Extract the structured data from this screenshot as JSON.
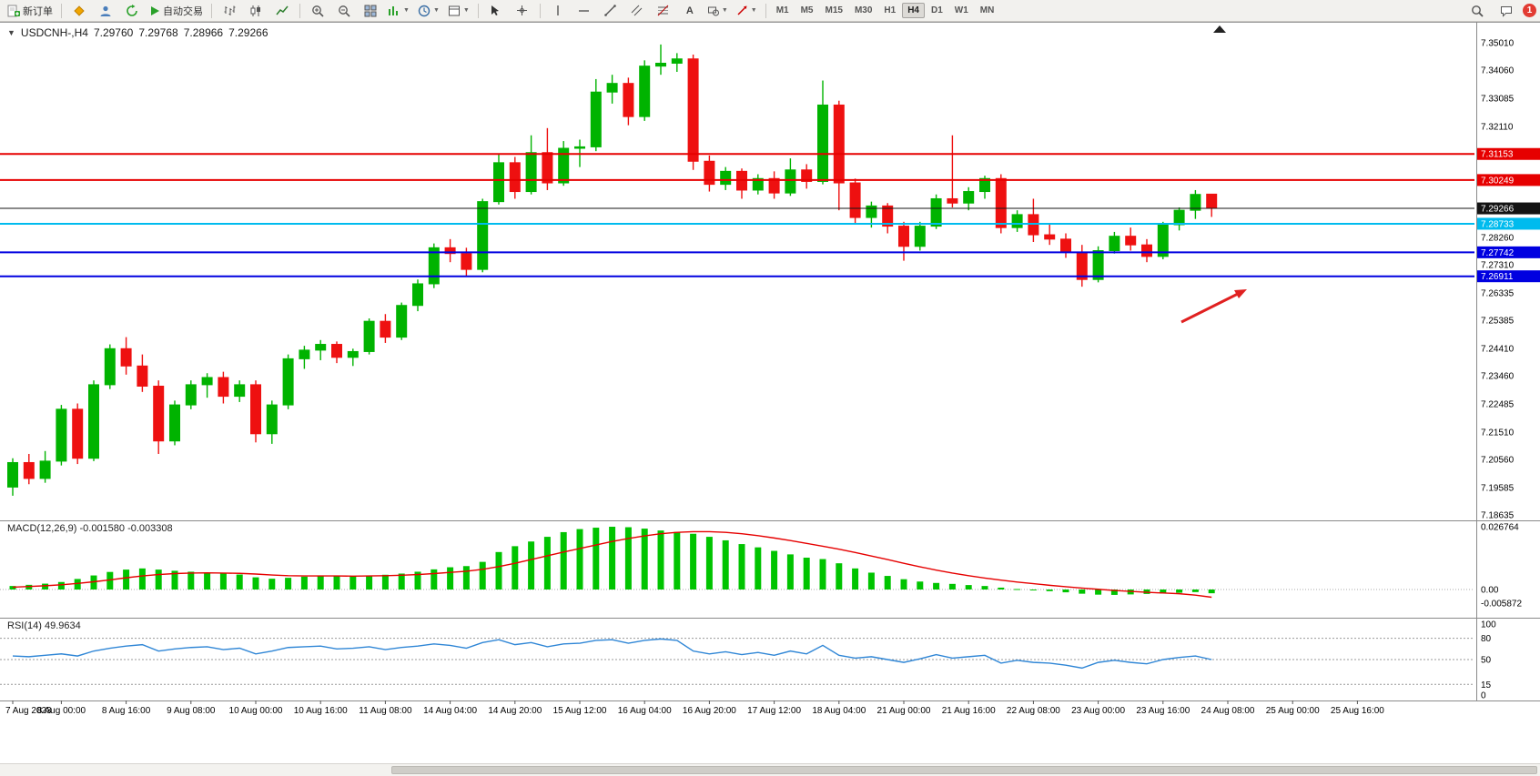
{
  "toolbar": {
    "new_order_label": "新订单",
    "autotrade_label": "自动交易",
    "timeframes": [
      "M1",
      "M5",
      "M15",
      "M30",
      "H1",
      "H4",
      "D1",
      "W1",
      "MN"
    ],
    "active_timeframe": "H4",
    "notification_count": "1"
  },
  "chart": {
    "symbol_title": "USDCNH-,H4",
    "open": "7.29760",
    "high": "7.29768",
    "low": "7.28966",
    "close": "7.29266"
  },
  "chart_data": {
    "type": "candlestick",
    "symbol": "USDCNH-",
    "timeframe": "H4",
    "current_ohlc": {
      "open": 7.2976,
      "high": 7.29768,
      "low": 7.28966,
      "close": 7.29266
    },
    "price_axis_ticks": [
      "7.35010",
      "7.34060",
      "7.33085",
      "7.32110",
      "7.28260",
      "7.27310",
      "7.26335",
      "7.25385",
      "7.24410",
      "7.23460",
      "7.22485",
      "7.21510",
      "7.20560",
      "7.19585",
      "7.18635"
    ],
    "hlines": [
      {
        "price": 7.31153,
        "label": "7.31153",
        "color": "#e60000",
        "width": 2
      },
      {
        "price": 7.30249,
        "label": "7.30249",
        "color": "#e60000",
        "width": 2
      },
      {
        "price": 7.28733,
        "label": "7.28733",
        "color": "#00bbee",
        "width": 2
      },
      {
        "price": 7.27742,
        "label": "7.27742",
        "color": "#0000e0",
        "width": 2
      },
      {
        "price": 7.26911,
        "label": "7.26911",
        "color": "#0000e0",
        "width": 2
      }
    ],
    "current_price": {
      "value": 7.29266,
      "label": "7.29266",
      "color": "#151515"
    },
    "candles": [
      [
        7.196,
        7.206,
        7.193,
        7.2045
      ],
      [
        7.2045,
        7.2075,
        7.197,
        7.199
      ],
      [
        7.199,
        7.2085,
        7.1975,
        7.205
      ],
      [
        7.205,
        7.2245,
        7.2035,
        7.223
      ],
      [
        7.223,
        7.225,
        7.204,
        7.206
      ],
      [
        7.206,
        7.233,
        7.205,
        7.2315
      ],
      [
        7.2315,
        7.2455,
        7.23,
        7.244
      ],
      [
        7.244,
        7.248,
        7.235,
        7.238
      ],
      [
        7.238,
        7.242,
        7.229,
        7.231
      ],
      [
        7.231,
        7.233,
        7.2075,
        7.212
      ],
      [
        7.212,
        7.226,
        7.2105,
        7.2245
      ],
      [
        7.2245,
        7.233,
        7.223,
        7.2315
      ],
      [
        7.2315,
        7.2355,
        7.227,
        7.234
      ],
      [
        7.234,
        7.236,
        7.225,
        7.2275
      ],
      [
        7.2275,
        7.233,
        7.2255,
        7.2315
      ],
      [
        7.2315,
        7.233,
        7.2115,
        7.2145
      ],
      [
        7.2145,
        7.226,
        7.211,
        7.2245
      ],
      [
        7.2245,
        7.242,
        7.223,
        7.2405
      ],
      [
        7.2405,
        7.245,
        7.237,
        7.2435
      ],
      [
        7.2435,
        7.247,
        7.24,
        7.2455
      ],
      [
        7.2455,
        7.2465,
        7.239,
        7.241
      ],
      [
        7.241,
        7.244,
        7.238,
        7.243
      ],
      [
        7.243,
        7.2545,
        7.242,
        7.2535
      ],
      [
        7.2535,
        7.256,
        7.246,
        7.248
      ],
      [
        7.248,
        7.26,
        7.247,
        7.259
      ],
      [
        7.259,
        7.268,
        7.257,
        7.2665
      ],
      [
        7.2665,
        7.2805,
        7.265,
        7.279
      ],
      [
        7.279,
        7.282,
        7.274,
        7.277
      ],
      [
        7.277,
        7.279,
        7.269,
        7.2715
      ],
      [
        7.2715,
        7.296,
        7.2705,
        7.295
      ],
      [
        7.295,
        7.3115,
        7.294,
        7.3085
      ],
      [
        7.3085,
        7.3105,
        7.296,
        7.2985
      ],
      [
        7.2985,
        7.318,
        7.2975,
        7.312
      ],
      [
        7.312,
        7.3205,
        7.299,
        7.3015
      ],
      [
        7.3015,
        7.316,
        7.3005,
        7.3135
      ],
      [
        7.3135,
        7.3165,
        7.307,
        7.314
      ],
      [
        7.314,
        7.3375,
        7.3125,
        7.333
      ],
      [
        7.333,
        7.339,
        7.329,
        7.336
      ],
      [
        7.336,
        7.338,
        7.3215,
        7.3245
      ],
      [
        7.3245,
        7.344,
        7.323,
        7.342
      ],
      [
        7.342,
        7.3495,
        7.339,
        7.343
      ],
      [
        7.343,
        7.3465,
        7.34,
        7.3445
      ],
      [
        7.3445,
        7.346,
        7.306,
        7.309
      ],
      [
        7.309,
        7.311,
        7.2985,
        7.301
      ],
      [
        7.301,
        7.307,
        7.299,
        7.3055
      ],
      [
        7.3055,
        7.3065,
        7.296,
        7.299
      ],
      [
        7.299,
        7.3045,
        7.2975,
        7.303
      ],
      [
        7.303,
        7.3055,
        7.296,
        7.298
      ],
      [
        7.298,
        7.31,
        7.297,
        7.306
      ],
      [
        7.306,
        7.308,
        7.2995,
        7.302
      ],
      [
        7.302,
        7.337,
        7.301,
        7.3285
      ],
      [
        7.3285,
        7.33,
        7.292,
        7.3015
      ],
      [
        7.3015,
        7.303,
        7.287,
        7.2895
      ],
      [
        7.2895,
        7.295,
        7.286,
        7.2935
      ],
      [
        7.2935,
        7.2945,
        7.284,
        7.2865
      ],
      [
        7.2865,
        7.288,
        7.2745,
        7.2795
      ],
      [
        7.2795,
        7.288,
        7.278,
        7.2865
      ],
      [
        7.2865,
        7.2975,
        7.2855,
        7.296
      ],
      [
        7.296,
        7.318,
        7.293,
        7.2945
      ],
      [
        7.2945,
        7.3,
        7.292,
        7.2985
      ],
      [
        7.2985,
        7.304,
        7.296,
        7.303
      ],
      [
        7.303,
        7.3045,
        7.284,
        7.286
      ],
      [
        7.286,
        7.292,
        7.2845,
        7.2905
      ],
      [
        7.2905,
        7.296,
        7.281,
        7.2835
      ],
      [
        7.2835,
        7.287,
        7.28,
        7.282
      ],
      [
        7.282,
        7.284,
        7.2755,
        7.2775
      ],
      [
        7.2775,
        7.28,
        7.2655,
        7.268
      ],
      [
        7.268,
        7.2795,
        7.267,
        7.278
      ],
      [
        7.278,
        7.2845,
        7.277,
        7.283
      ],
      [
        7.283,
        7.286,
        7.278,
        7.28
      ],
      [
        7.28,
        7.282,
        7.274,
        7.276
      ],
      [
        7.276,
        7.288,
        7.275,
        7.287
      ],
      [
        7.287,
        7.293,
        7.285,
        7.292
      ],
      [
        7.292,
        7.299,
        7.289,
        7.2975
      ],
      [
        7.2976,
        7.2977,
        7.2897,
        7.2927
      ]
    ],
    "x_labels": [
      "7 Aug 2023",
      "8 Aug 00:00",
      "8 Aug 16:00",
      "9 Aug 08:00",
      "10 Aug 00:00",
      "10 Aug 16:00",
      "11 Aug 08:00",
      "14 Aug 04:00",
      "14 Aug 20:00",
      "15 Aug 12:00",
      "16 Aug 04:00",
      "16 Aug 20:00",
      "17 Aug 12:00",
      "18 Aug 04:00",
      "21 Aug 00:00",
      "21 Aug 16:00",
      "22 Aug 08:00",
      "23 Aug 00:00",
      "23 Aug 16:00",
      "24 Aug 08:00",
      "25 Aug 00:00",
      "25 Aug 16:00"
    ],
    "macd": {
      "label": "MACD(12,26,9)",
      "value_main": "-0.001580",
      "value_signal": "-0.003308",
      "axis_labels": [
        "0.026764",
        "0.00",
        "-0.005872"
      ],
      "histogram": [
        0.0015,
        0.002,
        0.0025,
        0.0032,
        0.0045,
        0.006,
        0.0075,
        0.0085,
        0.009,
        0.0085,
        0.008,
        0.0076,
        0.0072,
        0.0068,
        0.0064,
        0.0052,
        0.0046,
        0.005,
        0.0055,
        0.0058,
        0.0058,
        0.0056,
        0.006,
        0.0063,
        0.0068,
        0.0076,
        0.0086,
        0.0095,
        0.01,
        0.0118,
        0.016,
        0.0185,
        0.0205,
        0.0225,
        0.0245,
        0.0258,
        0.0264,
        0.0268,
        0.0266,
        0.026,
        0.0252,
        0.0246,
        0.0238,
        0.0225,
        0.021,
        0.0194,
        0.018,
        0.0165,
        0.015,
        0.0136,
        0.013,
        0.0112,
        0.009,
        0.0072,
        0.0058,
        0.0044,
        0.0034,
        0.0028,
        0.0024,
        0.0019,
        0.0015,
        0.0008,
        0.0002,
        -0.0003,
        -0.0007,
        -0.0012,
        -0.0018,
        -0.0022,
        -0.0023,
        -0.0021,
        -0.0019,
        -0.0017,
        -0.0014,
        -0.0011,
        -0.0016
      ],
      "signal": [
        0.001,
        0.0013,
        0.0016,
        0.002,
        0.0026,
        0.0033,
        0.0041,
        0.005,
        0.0058,
        0.0064,
        0.0068,
        0.007,
        0.0071,
        0.007,
        0.0069,
        0.0066,
        0.0062,
        0.0059,
        0.0058,
        0.0058,
        0.0058,
        0.0057,
        0.0058,
        0.0059,
        0.0061,
        0.0064,
        0.0068,
        0.0073,
        0.0078,
        0.0086,
        0.0098,
        0.0112,
        0.0128,
        0.0144,
        0.016,
        0.0175,
        0.019,
        0.0205,
        0.0218,
        0.0229,
        0.0238,
        0.0244,
        0.0247,
        0.0247,
        0.0244,
        0.0238,
        0.023,
        0.022,
        0.0209,
        0.0197,
        0.0185,
        0.0172,
        0.0158,
        0.0143,
        0.0128,
        0.0112,
        0.0097,
        0.0083,
        0.007,
        0.0059,
        0.0049,
        0.004,
        0.0032,
        0.0025,
        0.0018,
        0.0012,
        0.0006,
        0.0001,
        -0.0004,
        -0.0008,
        -0.0012,
        -0.0015,
        -0.0018,
        -0.0024,
        -0.0033
      ]
    },
    "rsi": {
      "label": "RSI(14)",
      "value": "49.9634",
      "axis_labels": [
        "100",
        "80",
        "50",
        "15",
        "0"
      ],
      "levels": [
        80,
        50,
        15
      ],
      "series": [
        55,
        54,
        56,
        58,
        55,
        62,
        66,
        69,
        71,
        62,
        65,
        67,
        68,
        64,
        66,
        58,
        62,
        67,
        68,
        69,
        65,
        66,
        68,
        64,
        67,
        69,
        72,
        70,
        66,
        74,
        78,
        71,
        74,
        68,
        72,
        73,
        77,
        78,
        73,
        77,
        79,
        77,
        62,
        58,
        61,
        57,
        60,
        56,
        62,
        58,
        70,
        56,
        52,
        54,
        50,
        46,
        51,
        57,
        52,
        54,
        56,
        45,
        49,
        46,
        45,
        42,
        38,
        46,
        49,
        46,
        44,
        50,
        53,
        55,
        50
      ]
    },
    "annotation_arrow": {
      "color": "#e02020"
    }
  }
}
